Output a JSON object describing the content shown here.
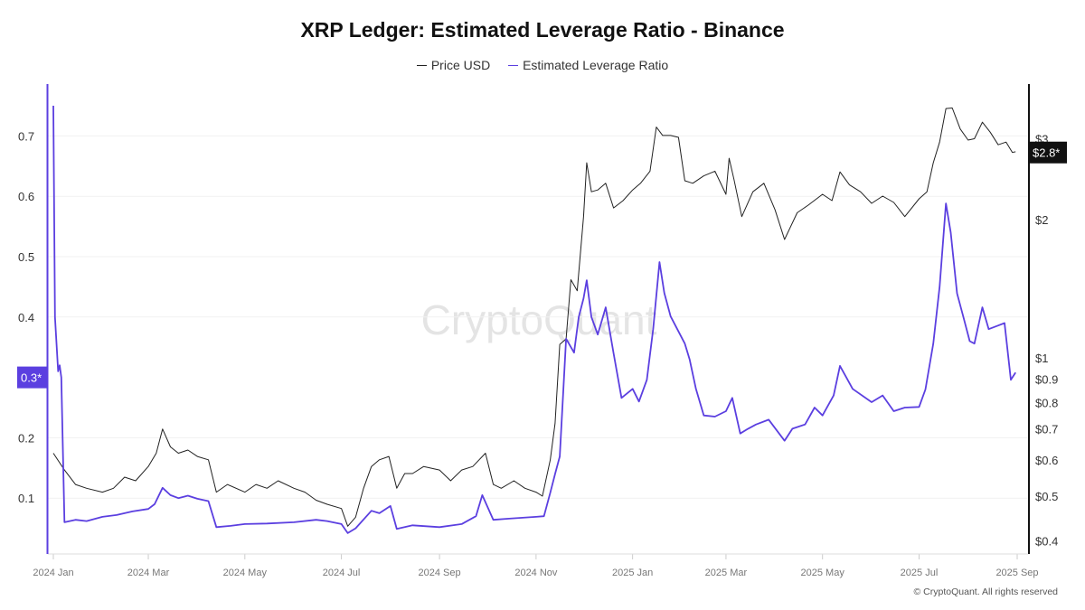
{
  "chart_data": {
    "type": "line",
    "title": "XRP Ledger: Estimated Leverage Ratio - Binance",
    "legend_position": "top",
    "grid": true,
    "watermark": "CryptoQuant",
    "copyright": "© CryptoQuant. All rights reserved",
    "x_ticks": [
      "2024 Jan",
      "2024 Mar",
      "2024 May",
      "2024 Jul",
      "2024 Sep",
      "2024 Nov",
      "2025 Jan",
      "2025 Mar",
      "2025 May",
      "2025 Jul",
      "2025 Sep"
    ],
    "x_tick_dates": [
      "2024-01-01",
      "2024-03-01",
      "2024-05-01",
      "2024-07-01",
      "2024-09-01",
      "2024-11-01",
      "2025-01-01",
      "2025-03-01",
      "2025-05-01",
      "2025-07-01",
      "2025-09-01"
    ],
    "xlim": [
      "2024-01-01",
      "2025-09-01"
    ],
    "y_left": {
      "ticks": [
        "0.1",
        "0.2",
        "0.4",
        "0.5",
        "0.6",
        "0.7"
      ],
      "tick_values": [
        0.1,
        0.2,
        0.4,
        0.5,
        0.6,
        0.7
      ],
      "range": [
        0,
        0.78
      ],
      "current_label": "0.3*",
      "current_value": 0.3
    },
    "y_right": {
      "scale": "log",
      "ticks": [
        "$0.4",
        "$0.5",
        "$0.6",
        "$0.7",
        "$0.8",
        "$0.9",
        "$1",
        "$2",
        "$3"
      ],
      "tick_values": [
        0.4,
        0.5,
        0.6,
        0.7,
        0.8,
        0.9,
        1,
        2,
        3
      ],
      "current_label": "$2.8*",
      "current_value": 2.8
    },
    "series": [
      {
        "name": "Price USD",
        "axis": "right",
        "color": "#222222",
        "points": [
          [
            "2024-01-01",
            0.62
          ],
          [
            "2024-01-08",
            0.57
          ],
          [
            "2024-01-15",
            0.53
          ],
          [
            "2024-01-22",
            0.52
          ],
          [
            "2024-02-01",
            0.51
          ],
          [
            "2024-02-08",
            0.52
          ],
          [
            "2024-02-15",
            0.55
          ],
          [
            "2024-02-22",
            0.54
          ],
          [
            "2024-03-01",
            0.58
          ],
          [
            "2024-03-06",
            0.62
          ],
          [
            "2024-03-10",
            0.7
          ],
          [
            "2024-03-15",
            0.64
          ],
          [
            "2024-03-20",
            0.62
          ],
          [
            "2024-03-26",
            0.63
          ],
          [
            "2024-04-01",
            0.61
          ],
          [
            "2024-04-08",
            0.6
          ],
          [
            "2024-04-13",
            0.51
          ],
          [
            "2024-04-20",
            0.53
          ],
          [
            "2024-05-01",
            0.51
          ],
          [
            "2024-05-08",
            0.53
          ],
          [
            "2024-05-15",
            0.52
          ],
          [
            "2024-05-22",
            0.54
          ],
          [
            "2024-06-01",
            0.52
          ],
          [
            "2024-06-08",
            0.51
          ],
          [
            "2024-06-15",
            0.49
          ],
          [
            "2024-06-22",
            0.48
          ],
          [
            "2024-07-01",
            0.47
          ],
          [
            "2024-07-05",
            0.43
          ],
          [
            "2024-07-10",
            0.45
          ],
          [
            "2024-07-15",
            0.52
          ],
          [
            "2024-07-20",
            0.58
          ],
          [
            "2024-07-25",
            0.6
          ],
          [
            "2024-07-31",
            0.61
          ],
          [
            "2024-08-05",
            0.52
          ],
          [
            "2024-08-10",
            0.56
          ],
          [
            "2024-08-15",
            0.56
          ],
          [
            "2024-08-22",
            0.58
          ],
          [
            "2024-09-01",
            0.57
          ],
          [
            "2024-09-08",
            0.54
          ],
          [
            "2024-09-15",
            0.57
          ],
          [
            "2024-09-22",
            0.58
          ],
          [
            "2024-09-30",
            0.62
          ],
          [
            "2024-10-05",
            0.53
          ],
          [
            "2024-10-10",
            0.52
          ],
          [
            "2024-10-18",
            0.54
          ],
          [
            "2024-10-25",
            0.52
          ],
          [
            "2024-11-01",
            0.51
          ],
          [
            "2024-11-05",
            0.5
          ],
          [
            "2024-11-10",
            0.6
          ],
          [
            "2024-11-13",
            0.72
          ],
          [
            "2024-11-16",
            1.07
          ],
          [
            "2024-11-20",
            1.1
          ],
          [
            "2024-11-23",
            1.48
          ],
          [
            "2024-11-27",
            1.4
          ],
          [
            "2024-12-01",
            2.03
          ],
          [
            "2024-12-03",
            2.66
          ],
          [
            "2024-12-06",
            2.3
          ],
          [
            "2024-12-10",
            2.32
          ],
          [
            "2024-12-15",
            2.4
          ],
          [
            "2024-12-20",
            2.12
          ],
          [
            "2024-12-26",
            2.2
          ],
          [
            "2025-01-01",
            2.32
          ],
          [
            "2025-01-06",
            2.4
          ],
          [
            "2025-01-12",
            2.55
          ],
          [
            "2025-01-16",
            3.18
          ],
          [
            "2025-01-20",
            3.05
          ],
          [
            "2025-01-25",
            3.05
          ],
          [
            "2025-01-30",
            3.02
          ],
          [
            "2025-02-03",
            2.43
          ],
          [
            "2025-02-08",
            2.4
          ],
          [
            "2025-02-15",
            2.49
          ],
          [
            "2025-02-22",
            2.55
          ],
          [
            "2025-03-01",
            2.27
          ],
          [
            "2025-03-03",
            2.72
          ],
          [
            "2025-03-06",
            2.45
          ],
          [
            "2025-03-11",
            2.03
          ],
          [
            "2025-03-18",
            2.3
          ],
          [
            "2025-03-25",
            2.4
          ],
          [
            "2025-04-01",
            2.1
          ],
          [
            "2025-04-07",
            1.81
          ],
          [
            "2025-04-15",
            2.07
          ],
          [
            "2025-04-22",
            2.15
          ],
          [
            "2025-05-01",
            2.27
          ],
          [
            "2025-05-07",
            2.2
          ],
          [
            "2025-05-12",
            2.54
          ],
          [
            "2025-05-18",
            2.38
          ],
          [
            "2025-05-25",
            2.3
          ],
          [
            "2025-06-01",
            2.17
          ],
          [
            "2025-06-08",
            2.25
          ],
          [
            "2025-06-15",
            2.18
          ],
          [
            "2025-06-22",
            2.03
          ],
          [
            "2025-07-01",
            2.22
          ],
          [
            "2025-07-06",
            2.3
          ],
          [
            "2025-07-10",
            2.66
          ],
          [
            "2025-07-14",
            2.95
          ],
          [
            "2025-07-18",
            3.49
          ],
          [
            "2025-07-22",
            3.5
          ],
          [
            "2025-07-27",
            3.15
          ],
          [
            "2025-08-01",
            2.98
          ],
          [
            "2025-08-05",
            3.0
          ],
          [
            "2025-08-10",
            3.26
          ],
          [
            "2025-08-15",
            3.1
          ],
          [
            "2025-08-20",
            2.91
          ],
          [
            "2025-08-25",
            2.95
          ],
          [
            "2025-08-29",
            2.8
          ],
          [
            "2025-08-31",
            2.81
          ]
        ]
      },
      {
        "name": "Estimated Leverage Ratio",
        "axis": "left",
        "color": "#5b3fe0",
        "points": [
          [
            "2024-01-01",
            0.75
          ],
          [
            "2024-01-02",
            0.4
          ],
          [
            "2024-01-04",
            0.31
          ],
          [
            "2024-01-05",
            0.32
          ],
          [
            "2024-01-06",
            0.3
          ],
          [
            "2024-01-08",
            0.06
          ],
          [
            "2024-01-15",
            0.064
          ],
          [
            "2024-01-22",
            0.062
          ],
          [
            "2024-02-01",
            0.069
          ],
          [
            "2024-02-10",
            0.072
          ],
          [
            "2024-02-20",
            0.078
          ],
          [
            "2024-03-01",
            0.082
          ],
          [
            "2024-03-05",
            0.09
          ],
          [
            "2024-03-10",
            0.117
          ],
          [
            "2024-03-15",
            0.105
          ],
          [
            "2024-03-20",
            0.1
          ],
          [
            "2024-03-26",
            0.104
          ],
          [
            "2024-04-01",
            0.099
          ],
          [
            "2024-04-08",
            0.095
          ],
          [
            "2024-04-13",
            0.052
          ],
          [
            "2024-04-22",
            0.054
          ],
          [
            "2024-05-01",
            0.057
          ],
          [
            "2024-05-15",
            0.058
          ],
          [
            "2024-06-01",
            0.06
          ],
          [
            "2024-06-15",
            0.064
          ],
          [
            "2024-06-22",
            0.062
          ],
          [
            "2024-07-01",
            0.057
          ],
          [
            "2024-07-05",
            0.042
          ],
          [
            "2024-07-10",
            0.05
          ],
          [
            "2024-07-20",
            0.079
          ],
          [
            "2024-07-25",
            0.075
          ],
          [
            "2024-08-01",
            0.087
          ],
          [
            "2024-08-05",
            0.049
          ],
          [
            "2024-08-15",
            0.055
          ],
          [
            "2024-09-01",
            0.052
          ],
          [
            "2024-09-15",
            0.057
          ],
          [
            "2024-09-24",
            0.07
          ],
          [
            "2024-09-28",
            0.105
          ],
          [
            "2024-10-05",
            0.064
          ],
          [
            "2024-10-15",
            0.066
          ],
          [
            "2024-11-01",
            0.069
          ],
          [
            "2024-11-06",
            0.07
          ],
          [
            "2024-11-10",
            0.109
          ],
          [
            "2024-11-13",
            0.14
          ],
          [
            "2024-11-16",
            0.169
          ],
          [
            "2024-11-20",
            0.364
          ],
          [
            "2024-11-25",
            0.341
          ],
          [
            "2024-11-28",
            0.4
          ],
          [
            "2024-12-01",
            0.431
          ],
          [
            "2024-12-03",
            0.461
          ],
          [
            "2024-12-06",
            0.4
          ],
          [
            "2024-12-10",
            0.371
          ],
          [
            "2024-12-15",
            0.416
          ],
          [
            "2024-12-20",
            0.34
          ],
          [
            "2024-12-25",
            0.266
          ],
          [
            "2025-01-01",
            0.281
          ],
          [
            "2025-01-05",
            0.26
          ],
          [
            "2025-01-10",
            0.296
          ],
          [
            "2025-01-14",
            0.38
          ],
          [
            "2025-01-18",
            0.491
          ],
          [
            "2025-01-21",
            0.44
          ],
          [
            "2025-01-25",
            0.401
          ],
          [
            "2025-02-03",
            0.356
          ],
          [
            "2025-02-06",
            0.33
          ],
          [
            "2025-02-10",
            0.281
          ],
          [
            "2025-02-15",
            0.237
          ],
          [
            "2025-02-22",
            0.235
          ],
          [
            "2025-03-01",
            0.244
          ],
          [
            "2025-03-05",
            0.266
          ],
          [
            "2025-03-10",
            0.207
          ],
          [
            "2025-03-15",
            0.215
          ],
          [
            "2025-03-20",
            0.222
          ],
          [
            "2025-03-28",
            0.23
          ],
          [
            "2025-04-07",
            0.195
          ],
          [
            "2025-04-12",
            0.215
          ],
          [
            "2025-04-20",
            0.222
          ],
          [
            "2025-04-26",
            0.25
          ],
          [
            "2025-05-01",
            0.237
          ],
          [
            "2025-05-08",
            0.27
          ],
          [
            "2025-05-12",
            0.319
          ],
          [
            "2025-05-16",
            0.3
          ],
          [
            "2025-05-20",
            0.281
          ],
          [
            "2025-06-01",
            0.259
          ],
          [
            "2025-06-08",
            0.27
          ],
          [
            "2025-06-15",
            0.244
          ],
          [
            "2025-06-22",
            0.25
          ],
          [
            "2025-07-01",
            0.251
          ],
          [
            "2025-07-05",
            0.28
          ],
          [
            "2025-07-10",
            0.356
          ],
          [
            "2025-07-14",
            0.45
          ],
          [
            "2025-07-18",
            0.588
          ],
          [
            "2025-07-21",
            0.54
          ],
          [
            "2025-07-25",
            0.439
          ],
          [
            "2025-07-29",
            0.4
          ],
          [
            "2025-08-02",
            0.36
          ],
          [
            "2025-08-05",
            0.356
          ],
          [
            "2025-08-10",
            0.416
          ],
          [
            "2025-08-14",
            0.38
          ],
          [
            "2025-08-20",
            0.386
          ],
          [
            "2025-08-24",
            0.39
          ],
          [
            "2025-08-28",
            0.296
          ],
          [
            "2025-08-31",
            0.308
          ]
        ]
      }
    ]
  }
}
